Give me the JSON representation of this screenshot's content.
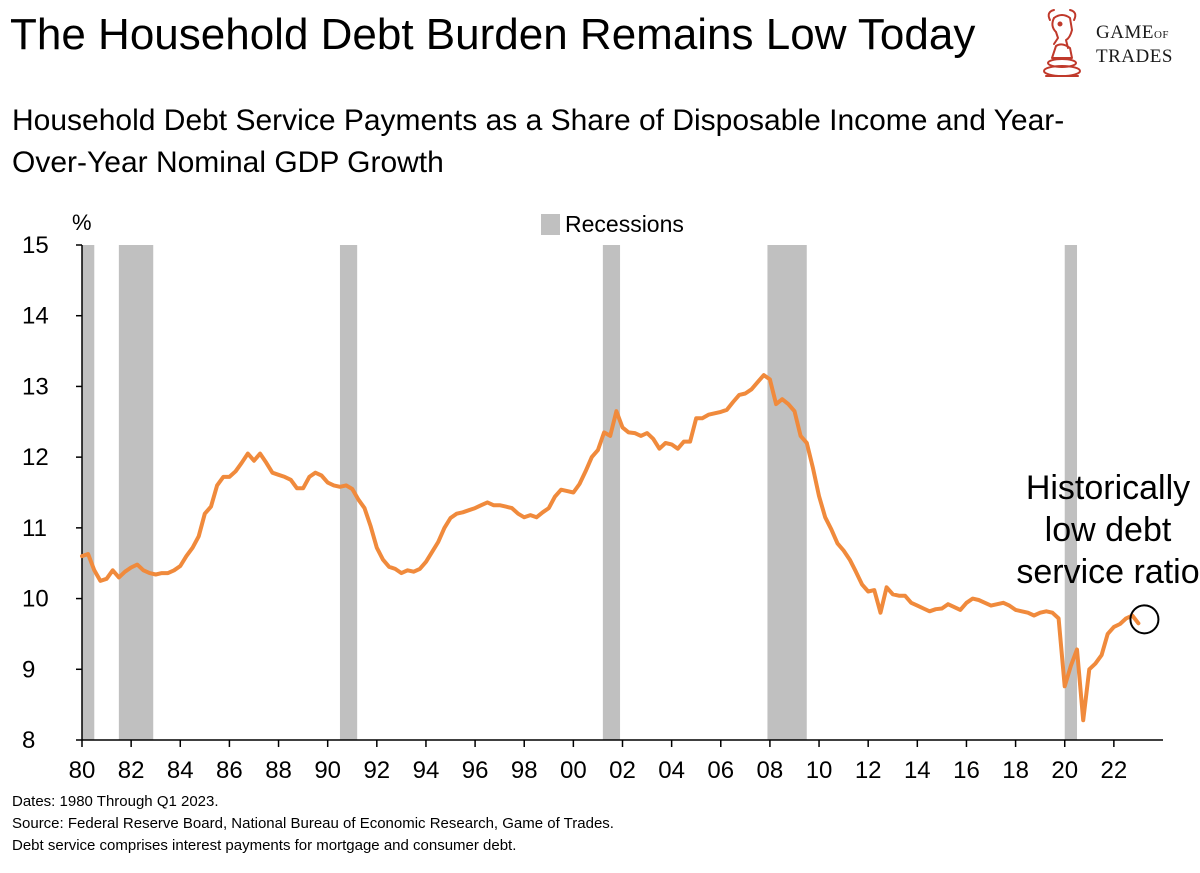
{
  "header": {
    "title": "The Household Debt Burden Remains Low Today",
    "subtitle": "Household Debt Service Payments as a Share of Disposable Income and Year-Over-Year Nominal GDP Growth"
  },
  "logo": {
    "line1": "GAME",
    "line1_small": "OF",
    "line2": "TRADES",
    "icon": "bull-chess-knight-icon",
    "color": "#c0392b"
  },
  "notes": [
    "Dates: 1980 Through Q1 2023.",
    "Source: Federal Reserve Board, National Bureau of Economic Research, Game of Trades.",
    "Debt service comprises interest payments for mortgage and consumer debt."
  ],
  "chart_data": {
    "type": "line",
    "ylabel": "%",
    "ylim": [
      8,
      15
    ],
    "yticks": [
      "15",
      "14",
      "13",
      "12",
      "11",
      "10",
      "9",
      "8"
    ],
    "xlim": [
      1980,
      2024
    ],
    "xticks": [
      "80",
      "82",
      "84",
      "86",
      "88",
      "90",
      "92",
      "94",
      "96",
      "98",
      "00",
      "02",
      "04",
      "06",
      "08",
      "10",
      "12",
      "14",
      "16",
      "18",
      "20",
      "22"
    ],
    "legend": {
      "label": "Recessions",
      "placement": "top-center"
    },
    "grid": false,
    "colors": {
      "line": "#f08a3c",
      "recession": "#c0c0c0"
    },
    "recessions": [
      {
        "start": 1980.0,
        "end": 1980.5
      },
      {
        "start": 1981.5,
        "end": 1982.9
      },
      {
        "start": 1990.5,
        "end": 1991.2
      },
      {
        "start": 2001.2,
        "end": 2001.9
      },
      {
        "start": 2007.9,
        "end": 2009.5
      },
      {
        "start": 2020.0,
        "end": 2020.5
      }
    ],
    "annotation": {
      "text": [
        "Historically",
        "low debt",
        "service ratio"
      ],
      "x": 2023.0,
      "y": 9.65
    },
    "series": [
      {
        "x": [
          1980.0,
          1980.25,
          1980.5,
          1980.75,
          1981.0,
          1981.25,
          1981.5,
          1981.75,
          1982.0,
          1982.25,
          1982.5,
          1982.75,
          1983.0,
          1983.25,
          1983.5,
          1983.75,
          1984.0,
          1984.25,
          1984.5,
          1984.75,
          1985.0,
          1985.25,
          1985.5,
          1985.75,
          1986.0,
          1986.25,
          1986.5,
          1986.75,
          1987.0,
          1987.25,
          1987.5,
          1987.75,
          1988.0,
          1988.25,
          1988.5,
          1988.75,
          1989.0,
          1989.25,
          1989.5,
          1989.75,
          1990.0,
          1990.25,
          1990.5,
          1990.75,
          1991.0,
          1991.25,
          1991.5,
          1991.75,
          1992.0,
          1992.25,
          1992.5,
          1992.75,
          1993.0,
          1993.25,
          1993.5,
          1993.75,
          1994.0,
          1994.25,
          1994.5,
          1994.75,
          1995.0,
          1995.25,
          1995.5,
          1995.75,
          1996.0,
          1996.25,
          1996.5,
          1996.75,
          1997.0,
          1997.25,
          1997.5,
          1997.75,
          1998.0,
          1998.25,
          1998.5,
          1998.75,
          1999.0,
          1999.25,
          1999.5,
          1999.75,
          2000.0,
          2000.25,
          2000.5,
          2000.75,
          2001.0,
          2001.25,
          2001.5,
          2001.75,
          2002.0,
          2002.25,
          2002.5,
          2002.75,
          2003.0,
          2003.25,
          2003.5,
          2003.75,
          2004.0,
          2004.25,
          2004.5,
          2004.75,
          2005.0,
          2005.25,
          2005.5,
          2005.75,
          2006.0,
          2006.25,
          2006.5,
          2006.75,
          2007.0,
          2007.25,
          2007.5,
          2007.75,
          2008.0,
          2008.25,
          2008.5,
          2008.75,
          2009.0,
          2009.25,
          2009.5,
          2009.75,
          2010.0,
          2010.25,
          2010.5,
          2010.75,
          2011.0,
          2011.25,
          2011.5,
          2011.75,
          2012.0,
          2012.25,
          2012.5,
          2012.75,
          2013.0,
          2013.25,
          2013.5,
          2013.75,
          2014.0,
          2014.25,
          2014.5,
          2014.75,
          2015.0,
          2015.25,
          2015.5,
          2015.75,
          2016.0,
          2016.25,
          2016.5,
          2016.75,
          2017.0,
          2017.25,
          2017.5,
          2017.75,
          2018.0,
          2018.25,
          2018.5,
          2018.75,
          2019.0,
          2019.25,
          2019.5,
          2019.75,
          2020.0,
          2020.25,
          2020.5,
          2020.75,
          2021.0,
          2021.25,
          2021.5,
          2021.75,
          2022.0,
          2022.25,
          2022.5,
          2022.75,
          2023.0
        ],
        "y": [
          10.6,
          10.63,
          10.4,
          10.25,
          10.28,
          10.4,
          10.3,
          10.38,
          10.44,
          10.48,
          10.4,
          10.36,
          10.34,
          10.36,
          10.36,
          10.4,
          10.46,
          10.6,
          10.72,
          10.88,
          11.2,
          11.3,
          11.6,
          11.72,
          11.72,
          11.8,
          11.92,
          12.05,
          11.95,
          12.05,
          11.92,
          11.78,
          11.75,
          11.72,
          11.68,
          11.56,
          11.56,
          11.72,
          11.78,
          11.74,
          11.64,
          11.6,
          11.58,
          11.6,
          11.55,
          11.4,
          11.28,
          11.02,
          10.72,
          10.55,
          10.45,
          10.42,
          10.36,
          10.4,
          10.38,
          10.42,
          10.52,
          10.66,
          10.8,
          11.0,
          11.14,
          11.2,
          11.22,
          11.25,
          11.28,
          11.32,
          11.36,
          11.32,
          11.32,
          11.3,
          11.28,
          11.2,
          11.15,
          11.18,
          11.15,
          11.22,
          11.28,
          11.44,
          11.54,
          11.52,
          11.5,
          11.62,
          11.8,
          12.0,
          12.1,
          12.35,
          12.3,
          12.65,
          12.42,
          12.35,
          12.34,
          12.3,
          12.34,
          12.26,
          12.12,
          12.2,
          12.18,
          12.12,
          12.22,
          12.22,
          12.55,
          12.55,
          12.6,
          12.62,
          12.64,
          12.67,
          12.78,
          12.88,
          12.9,
          12.96,
          13.06,
          13.16,
          13.1,
          12.75,
          12.82,
          12.75,
          12.65,
          12.3,
          12.2,
          11.85,
          11.45,
          11.15,
          10.98,
          10.78,
          10.68,
          10.55,
          10.38,
          10.2,
          10.1,
          10.12,
          9.8,
          10.16,
          10.06,
          10.04,
          10.04,
          9.94,
          9.9,
          9.86,
          9.82,
          9.85,
          9.86,
          9.92,
          9.88,
          9.84,
          9.94,
          10.0,
          9.98,
          9.94,
          9.9,
          9.92,
          9.94,
          9.9,
          9.84,
          9.82,
          9.8,
          9.76,
          9.8,
          9.82,
          9.8,
          9.72,
          8.76,
          9.05,
          9.28,
          8.28,
          9.0,
          9.08,
          9.2,
          9.5,
          9.6,
          9.64,
          9.72,
          9.76,
          9.65
        ]
      }
    ]
  }
}
